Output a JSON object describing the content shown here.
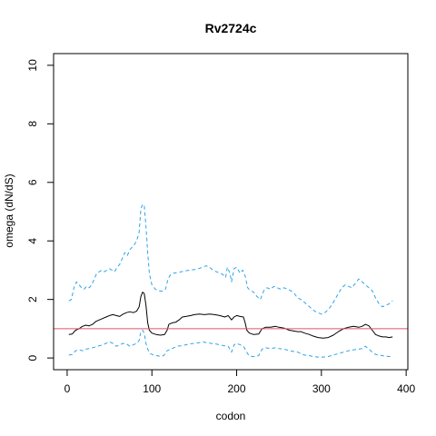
{
  "chart_data": {
    "type": "line",
    "title": "Rv2724c",
    "xlabel": "codon",
    "ylabel": "omega (dN/dS)",
    "xlim": [
      -16,
      402
    ],
    "ylim": [
      -0.4,
      10.4
    ],
    "x_ticks": [
      0,
      100,
      200,
      300,
      400
    ],
    "y_ticks": [
      0,
      2,
      4,
      6,
      8,
      10
    ],
    "reference_line": {
      "y": 1,
      "color": "#DF536B"
    },
    "grid": false,
    "series": [
      {
        "role": "estimate",
        "color": "#000000",
        "style": "solid",
        "points": [
          [
            2,
            0.8
          ],
          [
            6,
            0.82
          ],
          [
            10,
            0.95
          ],
          [
            14,
            1.0
          ],
          [
            18,
            1.08
          ],
          [
            22,
            1.12
          ],
          [
            26,
            1.1
          ],
          [
            30,
            1.15
          ],
          [
            34,
            1.25
          ],
          [
            38,
            1.3
          ],
          [
            42,
            1.35
          ],
          [
            46,
            1.4
          ],
          [
            50,
            1.45
          ],
          [
            54,
            1.48
          ],
          [
            58,
            1.45
          ],
          [
            62,
            1.42
          ],
          [
            66,
            1.5
          ],
          [
            70,
            1.55
          ],
          [
            74,
            1.58
          ],
          [
            78,
            1.55
          ],
          [
            82,
            1.6
          ],
          [
            85,
            1.75
          ],
          [
            87,
            2.1
          ],
          [
            89,
            2.25
          ],
          [
            91,
            2.2
          ],
          [
            93,
            1.8
          ],
          [
            95,
            1.2
          ],
          [
            97,
            0.95
          ],
          [
            100,
            0.85
          ],
          [
            105,
            0.8
          ],
          [
            110,
            0.78
          ],
          [
            115,
            0.8
          ],
          [
            118,
            0.95
          ],
          [
            120,
            1.15
          ],
          [
            124,
            1.2
          ],
          [
            128,
            1.22
          ],
          [
            132,
            1.3
          ],
          [
            136,
            1.4
          ],
          [
            140,
            1.42
          ],
          [
            146,
            1.45
          ],
          [
            150,
            1.48
          ],
          [
            156,
            1.5
          ],
          [
            162,
            1.48
          ],
          [
            168,
            1.5
          ],
          [
            174,
            1.48
          ],
          [
            180,
            1.45
          ],
          [
            186,
            1.4
          ],
          [
            190,
            1.45
          ],
          [
            194,
            1.3
          ],
          [
            197,
            1.4
          ],
          [
            200,
            1.45
          ],
          [
            204,
            1.42
          ],
          [
            208,
            1.4
          ],
          [
            210,
            1.2
          ],
          [
            212,
            0.95
          ],
          [
            215,
            0.85
          ],
          [
            220,
            0.8
          ],
          [
            226,
            0.82
          ],
          [
            230,
            1.0
          ],
          [
            234,
            1.05
          ],
          [
            240,
            1.05
          ],
          [
            246,
            1.08
          ],
          [
            250,
            1.05
          ],
          [
            256,
            1.02
          ],
          [
            262,
            0.95
          ],
          [
            268,
            0.92
          ],
          [
            272,
            0.9
          ],
          [
            276,
            0.9
          ],
          [
            280,
            0.85
          ],
          [
            286,
            0.8
          ],
          [
            290,
            0.75
          ],
          [
            296,
            0.7
          ],
          [
            302,
            0.68
          ],
          [
            308,
            0.7
          ],
          [
            314,
            0.78
          ],
          [
            320,
            0.9
          ],
          [
            326,
            1.0
          ],
          [
            332,
            1.05
          ],
          [
            338,
            1.08
          ],
          [
            344,
            1.05
          ],
          [
            348,
            1.08
          ],
          [
            352,
            1.15
          ],
          [
            356,
            1.1
          ],
          [
            360,
            0.95
          ],
          [
            364,
            0.8
          ],
          [
            368,
            0.75
          ],
          [
            372,
            0.72
          ],
          [
            376,
            0.72
          ],
          [
            380,
            0.7
          ],
          [
            384,
            0.72
          ]
        ]
      },
      {
        "role": "upper-bound",
        "color": "#2FA4E7",
        "style": "dashed",
        "points": [
          [
            2,
            1.95
          ],
          [
            5,
            2.0
          ],
          [
            8,
            2.4
          ],
          [
            11,
            2.6
          ],
          [
            14,
            2.5
          ],
          [
            17,
            2.4
          ],
          [
            20,
            2.35
          ],
          [
            23,
            2.45
          ],
          [
            26,
            2.4
          ],
          [
            29,
            2.5
          ],
          [
            32,
            2.7
          ],
          [
            35,
            2.9
          ],
          [
            38,
            2.95
          ],
          [
            41,
            3.0
          ],
          [
            44,
            2.95
          ],
          [
            47,
            3.0
          ],
          [
            50,
            3.05
          ],
          [
            53,
            3.0
          ],
          [
            56,
            2.95
          ],
          [
            59,
            3.1
          ],
          [
            62,
            3.2
          ],
          [
            65,
            3.4
          ],
          [
            68,
            3.6
          ],
          [
            71,
            3.5
          ],
          [
            74,
            3.7
          ],
          [
            77,
            3.8
          ],
          [
            80,
            3.9
          ],
          [
            83,
            4.1
          ],
          [
            85,
            4.3
          ],
          [
            87,
            5.1
          ],
          [
            89,
            5.25
          ],
          [
            91,
            5.2
          ],
          [
            93,
            4.5
          ],
          [
            95,
            3.6
          ],
          [
            97,
            2.9
          ],
          [
            100,
            2.5
          ],
          [
            104,
            2.35
          ],
          [
            108,
            2.3
          ],
          [
            112,
            2.28
          ],
          [
            116,
            2.35
          ],
          [
            119,
            2.7
          ],
          [
            122,
            2.85
          ],
          [
            126,
            2.9
          ],
          [
            130,
            2.92
          ],
          [
            135,
            2.95
          ],
          [
            140,
            2.98
          ],
          [
            145,
            3.0
          ],
          [
            150,
            3.02
          ],
          [
            155,
            3.05
          ],
          [
            160,
            3.1
          ],
          [
            164,
            3.15
          ],
          [
            168,
            3.1
          ],
          [
            172,
            3.0
          ],
          [
            176,
            2.95
          ],
          [
            180,
            2.9
          ],
          [
            184,
            2.85
          ],
          [
            187,
            2.75
          ],
          [
            189,
            3.1
          ],
          [
            192,
            2.9
          ],
          [
            194,
            2.6
          ],
          [
            197,
            3.05
          ],
          [
            200,
            3.1
          ],
          [
            204,
            2.9
          ],
          [
            207,
            3.0
          ],
          [
            210,
            2.8
          ],
          [
            213,
            2.4
          ],
          [
            216,
            2.3
          ],
          [
            220,
            2.25
          ],
          [
            224,
            2.1
          ],
          [
            228,
            2.0
          ],
          [
            232,
            2.3
          ],
          [
            236,
            2.4
          ],
          [
            240,
            2.35
          ],
          [
            244,
            2.45
          ],
          [
            248,
            2.4
          ],
          [
            252,
            2.35
          ],
          [
            256,
            2.4
          ],
          [
            260,
            2.35
          ],
          [
            264,
            2.3
          ],
          [
            268,
            2.2
          ],
          [
            272,
            2.05
          ],
          [
            276,
            2.0
          ],
          [
            280,
            1.9
          ],
          [
            284,
            1.8
          ],
          [
            288,
            1.7
          ],
          [
            292,
            1.6
          ],
          [
            296,
            1.55
          ],
          [
            300,
            1.5
          ],
          [
            304,
            1.55
          ],
          [
            308,
            1.65
          ],
          [
            312,
            1.8
          ],
          [
            316,
            2.0
          ],
          [
            320,
            2.2
          ],
          [
            324,
            2.4
          ],
          [
            328,
            2.5
          ],
          [
            332,
            2.45
          ],
          [
            336,
            2.4
          ],
          [
            340,
            2.55
          ],
          [
            344,
            2.7
          ],
          [
            348,
            2.6
          ],
          [
            352,
            2.5
          ],
          [
            356,
            2.4
          ],
          [
            360,
            2.3
          ],
          [
            364,
            2.05
          ],
          [
            368,
            1.85
          ],
          [
            372,
            1.75
          ],
          [
            376,
            1.8
          ],
          [
            380,
            1.85
          ],
          [
            384,
            1.95
          ]
        ]
      },
      {
        "role": "lower-bound",
        "color": "#2FA4E7",
        "style": "dashed",
        "points": [
          [
            2,
            0.1
          ],
          [
            6,
            0.12
          ],
          [
            10,
            0.25
          ],
          [
            14,
            0.28
          ],
          [
            18,
            0.25
          ],
          [
            22,
            0.3
          ],
          [
            26,
            0.32
          ],
          [
            30,
            0.35
          ],
          [
            34,
            0.38
          ],
          [
            38,
            0.42
          ],
          [
            42,
            0.45
          ],
          [
            46,
            0.5
          ],
          [
            50,
            0.55
          ],
          [
            54,
            0.5
          ],
          [
            58,
            0.4
          ],
          [
            62,
            0.45
          ],
          [
            66,
            0.5
          ],
          [
            70,
            0.48
          ],
          [
            74,
            0.4
          ],
          [
            78,
            0.45
          ],
          [
            82,
            0.5
          ],
          [
            85,
            0.6
          ],
          [
            87,
            0.9
          ],
          [
            89,
            0.95
          ],
          [
            91,
            0.85
          ],
          [
            93,
            0.5
          ],
          [
            95,
            0.3
          ],
          [
            98,
            0.15
          ],
          [
            102,
            0.1
          ],
          [
            106,
            0.08
          ],
          [
            110,
            0.05
          ],
          [
            114,
            0.08
          ],
          [
            118,
            0.25
          ],
          [
            122,
            0.3
          ],
          [
            126,
            0.35
          ],
          [
            130,
            0.4
          ],
          [
            135,
            0.42
          ],
          [
            140,
            0.45
          ],
          [
            145,
            0.48
          ],
          [
            150,
            0.5
          ],
          [
            155,
            0.52
          ],
          [
            160,
            0.55
          ],
          [
            165,
            0.52
          ],
          [
            170,
            0.5
          ],
          [
            175,
            0.48
          ],
          [
            180,
            0.45
          ],
          [
            185,
            0.42
          ],
          [
            190,
            0.4
          ],
          [
            194,
            0.2
          ],
          [
            197,
            0.45
          ],
          [
            200,
            0.5
          ],
          [
            204,
            0.45
          ],
          [
            208,
            0.4
          ],
          [
            211,
            0.25
          ],
          [
            214,
            0.1
          ],
          [
            218,
            0.05
          ],
          [
            222,
            0.05
          ],
          [
            226,
            0.08
          ],
          [
            230,
            0.3
          ],
          [
            234,
            0.35
          ],
          [
            240,
            0.32
          ],
          [
            246,
            0.35
          ],
          [
            250,
            0.32
          ],
          [
            256,
            0.3
          ],
          [
            262,
            0.25
          ],
          [
            268,
            0.22
          ],
          [
            272,
            0.2
          ],
          [
            276,
            0.15
          ],
          [
            280,
            0.1
          ],
          [
            286,
            0.08
          ],
          [
            290,
            0.05
          ],
          [
            296,
            0.03
          ],
          [
            302,
            0.03
          ],
          [
            308,
            0.05
          ],
          [
            314,
            0.1
          ],
          [
            320,
            0.15
          ],
          [
            326,
            0.2
          ],
          [
            332,
            0.25
          ],
          [
            338,
            0.28
          ],
          [
            344,
            0.3
          ],
          [
            348,
            0.32
          ],
          [
            352,
            0.4
          ],
          [
            356,
            0.3
          ],
          [
            360,
            0.2
          ],
          [
            364,
            0.12
          ],
          [
            368,
            0.1
          ],
          [
            372,
            0.08
          ],
          [
            376,
            0.06
          ],
          [
            380,
            0.05
          ],
          [
            384,
            0.05
          ]
        ]
      }
    ]
  }
}
